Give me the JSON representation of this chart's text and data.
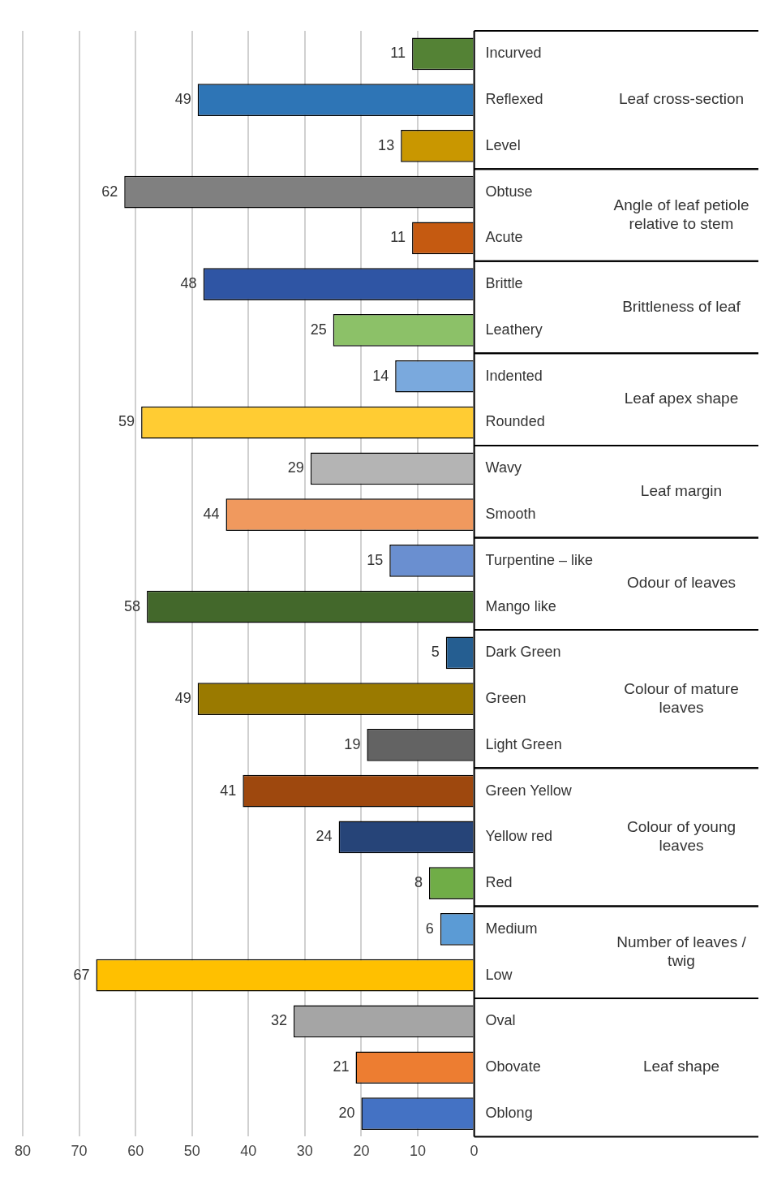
{
  "chart_data": {
    "type": "bar",
    "orientation": "horizontal",
    "stacked": true,
    "categories": [
      "Incurved",
      "Reflexed",
      "Level",
      "Obtuse",
      "Acute",
      "Brittle",
      "Leathery",
      "Indented",
      "Rounded",
      "Wavy",
      "Smooth",
      "Turpentine – like",
      "Mango like",
      "Dark Green",
      "Green",
      "Light Green",
      "Green Yellow",
      "Yellow red",
      "Red",
      "Medium",
      "Low",
      "Oval",
      "Obovate",
      "Oblong"
    ],
    "series": [
      {
        "name": "Leaf cross-section",
        "values": [
          11,
          49,
          13,
          null,
          null,
          null,
          null,
          null,
          null,
          null,
          null,
          null,
          null,
          null,
          null,
          null,
          null,
          null,
          null,
          null,
          null,
          null,
          null,
          null
        ],
        "colors": [
          "#548235",
          "#2e75b6",
          "#c99700",
          null,
          null,
          null,
          null,
          null,
          null,
          null,
          null,
          null,
          null,
          null,
          null,
          null,
          null,
          null,
          null,
          null,
          null,
          null,
          null,
          null
        ]
      },
      {
        "name": "Angle of leaf petiole relative to stem",
        "values": [
          null,
          null,
          null,
          62,
          11,
          null,
          null,
          null,
          null,
          null,
          null,
          null,
          null,
          null,
          null,
          null,
          null,
          null,
          null,
          null,
          null,
          null,
          null,
          null
        ],
        "colors": [
          null,
          null,
          null,
          "#808080",
          "#c55a11",
          null,
          null,
          null,
          null,
          null,
          null,
          null,
          null,
          null,
          null,
          null,
          null,
          null,
          null,
          null,
          null,
          null,
          null,
          null
        ]
      },
      {
        "name": "Brittleness of leaf",
        "values": [
          null,
          null,
          null,
          null,
          null,
          48,
          25,
          null,
          null,
          null,
          null,
          null,
          null,
          null,
          null,
          null,
          null,
          null,
          null,
          null,
          null,
          null,
          null,
          null
        ],
        "colors": [
          null,
          null,
          null,
          null,
          null,
          "#2f55a4",
          "#8cc168",
          null,
          null,
          null,
          null,
          null,
          null,
          null,
          null,
          null,
          null,
          null,
          null,
          null,
          null,
          null,
          null,
          null
        ]
      },
      {
        "name": "Leaf apex shape",
        "values": [
          null,
          null,
          null,
          null,
          null,
          null,
          null,
          14,
          59,
          null,
          null,
          null,
          null,
          null,
          null,
          null,
          null,
          null,
          null,
          null,
          null,
          null,
          null,
          null
        ],
        "colors": [
          null,
          null,
          null,
          null,
          null,
          null,
          null,
          "#7aa9dd",
          "#ffcc33",
          null,
          null,
          null,
          null,
          null,
          null,
          null,
          null,
          null,
          null,
          null,
          null,
          null,
          null,
          null
        ]
      },
      {
        "name": "Leaf margin",
        "values": [
          null,
          null,
          null,
          null,
          null,
          null,
          null,
          null,
          null,
          29,
          44,
          null,
          null,
          null,
          null,
          null,
          null,
          null,
          null,
          null,
          null,
          null,
          null,
          null
        ],
        "colors": [
          null,
          null,
          null,
          null,
          null,
          null,
          null,
          null,
          null,
          "#b4b4b4",
          "#f0995e",
          null,
          null,
          null,
          null,
          null,
          null,
          null,
          null,
          null,
          null,
          null,
          null,
          null
        ]
      },
      {
        "name": "Odour of leaves",
        "values": [
          null,
          null,
          null,
          null,
          null,
          null,
          null,
          null,
          null,
          null,
          null,
          15,
          58,
          null,
          null,
          null,
          null,
          null,
          null,
          null,
          null,
          null,
          null,
          null
        ],
        "colors": [
          null,
          null,
          null,
          null,
          null,
          null,
          null,
          null,
          null,
          null,
          null,
          "#6a8fd0",
          "#43682b",
          null,
          null,
          null,
          null,
          null,
          null,
          null,
          null,
          null,
          null,
          null
        ]
      },
      {
        "name": "Colour of mature leaves",
        "values": [
          null,
          null,
          null,
          null,
          null,
          null,
          null,
          null,
          null,
          null,
          null,
          null,
          null,
          5,
          49,
          19,
          null,
          null,
          null,
          null,
          null,
          null,
          null,
          null
        ],
        "colors": [
          null,
          null,
          null,
          null,
          null,
          null,
          null,
          null,
          null,
          null,
          null,
          null,
          null,
          "#255e91",
          "#9a7a00",
          "#636363",
          null,
          null,
          null,
          null,
          null,
          null,
          null,
          null
        ]
      },
      {
        "name": "Colour of young leaves",
        "values": [
          null,
          null,
          null,
          null,
          null,
          null,
          null,
          null,
          null,
          null,
          null,
          null,
          null,
          null,
          null,
          null,
          41,
          24,
          8,
          null,
          null,
          null,
          null,
          null
        ],
        "colors": [
          null,
          null,
          null,
          null,
          null,
          null,
          null,
          null,
          null,
          null,
          null,
          null,
          null,
          null,
          null,
          null,
          "#9e480e",
          "#264478",
          "#70ad47",
          null,
          null,
          null,
          null,
          null
        ]
      },
      {
        "name": "Number of leaves / twig",
        "values": [
          null,
          null,
          null,
          null,
          null,
          null,
          null,
          null,
          null,
          null,
          null,
          null,
          null,
          null,
          null,
          null,
          null,
          null,
          null,
          6,
          67,
          null,
          null,
          null
        ],
        "colors": [
          null,
          null,
          null,
          null,
          null,
          null,
          null,
          null,
          null,
          null,
          null,
          null,
          null,
          null,
          null,
          null,
          null,
          null,
          null,
          "#5b9bd5",
          "#ffc000",
          null,
          null,
          null
        ]
      },
      {
        "name": "Leaf shape",
        "values": [
          null,
          null,
          null,
          null,
          null,
          null,
          null,
          null,
          null,
          null,
          null,
          null,
          null,
          null,
          null,
          null,
          null,
          null,
          null,
          null,
          null,
          32,
          21,
          20
        ],
        "colors": [
          null,
          null,
          null,
          null,
          null,
          null,
          null,
          null,
          null,
          null,
          null,
          null,
          null,
          null,
          null,
          null,
          null,
          null,
          null,
          null,
          null,
          "#a5a5a5",
          "#ed7d31",
          "#4472c4"
        ]
      }
    ],
    "xlim": [
      80,
      0
    ],
    "xticks": [
      0,
      10,
      20,
      30,
      40,
      50,
      60,
      70,
      80
    ],
    "grid": "x",
    "data_labels": true
  }
}
